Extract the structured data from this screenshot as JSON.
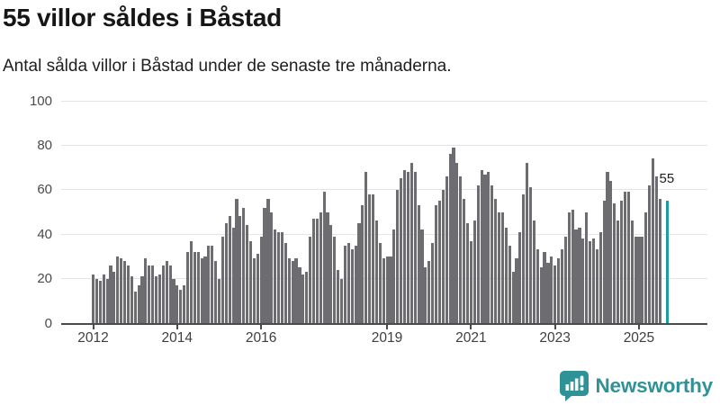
{
  "header": {
    "title": "55 villor såldes i Båstad",
    "subtitle": "Antal sålda villor i Båstad under de senaste tre månaderna."
  },
  "branding": {
    "logo_text": "Newsworthy",
    "logo_icon": "speech-bubble-bar-chart-exclamation"
  },
  "colors": {
    "bar": "#6c6c71",
    "highlight": "#1d9da0",
    "logo": "#2f9296",
    "grid": "#e4e4e4",
    "axis": "#4b4b4b",
    "title_text": "#161616"
  },
  "chart_data": {
    "type": "bar",
    "title": "55 villor såldes i Båstad",
    "subtitle": "Antal sålda villor i Båstad under de senaste tre månaderna.",
    "unit": "sålda villor (rullande tre månader)",
    "frequency": "monthly",
    "start_month": "2012-01",
    "end_month": "2025-09",
    "xlabel": "",
    "ylabel": "",
    "ylim": [
      0,
      100
    ],
    "grid": "horizontal",
    "y_ticks": [
      0,
      20,
      40,
      60,
      80,
      100
    ],
    "x_ticks": [
      2012,
      2014,
      2016,
      2019,
      2021,
      2023,
      2025
    ],
    "highlight": {
      "index": 164,
      "value": 55,
      "label": "55",
      "gap_before": true
    },
    "values": [
      22,
      20,
      19,
      22,
      20,
      26,
      23,
      30,
      29,
      28,
      26,
      21,
      14,
      17,
      21,
      29,
      26,
      26,
      21,
      22,
      26,
      28,
      26,
      20,
      17,
      15,
      17,
      32,
      37,
      32,
      32,
      29,
      30,
      35,
      35,
      28,
      20,
      39,
      45,
      48,
      43,
      56,
      48,
      52,
      44,
      37,
      29,
      31,
      39,
      52,
      56,
      50,
      42,
      41,
      41,
      36,
      29,
      28,
      29,
      25,
      22,
      23,
      39,
      47,
      47,
      50,
      59,
      50,
      44,
      39,
      24,
      20,
      35,
      36,
      33,
      35,
      45,
      53,
      68,
      58,
      58,
      46,
      36,
      29,
      30,
      30,
      42,
      60,
      65,
      69,
      68,
      72,
      68,
      53,
      42,
      25,
      28,
      36,
      53,
      55,
      60,
      66,
      76,
      79,
      72,
      66,
      56,
      45,
      37,
      46,
      62,
      69,
      67,
      68,
      62,
      56,
      50,
      50,
      43,
      35,
      23,
      29,
      41,
      58,
      72,
      61,
      46,
      33,
      25,
      32,
      27,
      30,
      26,
      29,
      33,
      39,
      50,
      51,
      42,
      43,
      38,
      50,
      37,
      38,
      33,
      41,
      55,
      68,
      64,
      54,
      46,
      55,
      59,
      59,
      46,
      39,
      39,
      39,
      50,
      62,
      74,
      66,
      56,
      null,
      55
    ]
  }
}
